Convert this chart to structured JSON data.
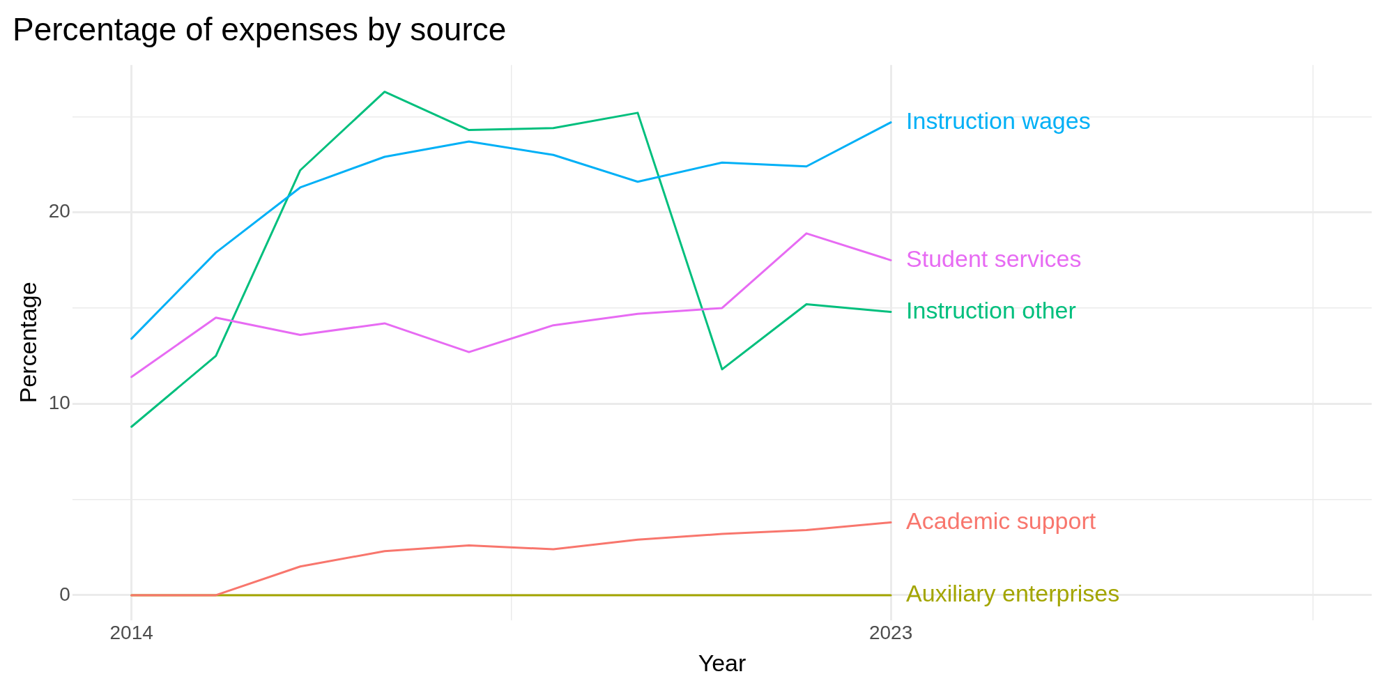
{
  "chart_data": {
    "type": "line",
    "title": "Percentage of expenses by source",
    "xlabel": "Year",
    "ylabel": "Percentage",
    "x": [
      2014,
      2015,
      2016,
      2017,
      2018,
      2019,
      2020,
      2021,
      2022,
      2023
    ],
    "series": [
      {
        "name": "Instruction wages",
        "color": "#00b0f6",
        "values": [
          13.4,
          17.9,
          21.3,
          22.9,
          23.7,
          23.0,
          21.6,
          22.6,
          22.4,
          24.7
        ]
      },
      {
        "name": "Student services",
        "color": "#e76bf3",
        "values": [
          11.4,
          14.5,
          13.6,
          14.2,
          12.7,
          14.1,
          14.7,
          15.0,
          18.9,
          17.5
        ]
      },
      {
        "name": "Instruction other",
        "color": "#00bf7d",
        "values": [
          8.8,
          12.5,
          22.2,
          26.3,
          24.3,
          24.4,
          25.2,
          11.8,
          15.2,
          14.8
        ]
      },
      {
        "name": "Academic support",
        "color": "#f8766d",
        "values": [
          0,
          0,
          1.5,
          2.3,
          2.6,
          2.4,
          2.9,
          3.2,
          3.4,
          3.8
        ]
      },
      {
        "name": "Auxiliary enterprises",
        "color": "#a3a500",
        "values": [
          0,
          0,
          0,
          0,
          0,
          0,
          0,
          0,
          0,
          0
        ]
      }
    ],
    "xlim": [
      2013.3,
      2028.7
    ],
    "xticks": [
      2014,
      {
        "value": 2018.5,
        "label": null
      },
      2023,
      {
        "value": 2028,
        "label": null
      }
    ],
    "ylim": [
      -1.3,
      27.7
    ],
    "yticks": [
      0,
      {
        "value": 5,
        "label": null
      },
      10,
      {
        "value": 15,
        "label": null
      },
      20,
      {
        "value": 25,
        "label": null
      }
    ],
    "grid": true,
    "legend": false
  }
}
